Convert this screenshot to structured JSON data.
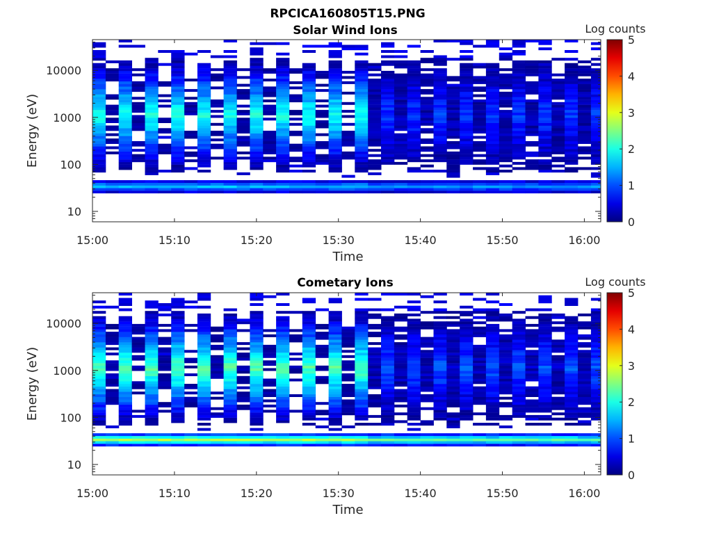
{
  "figure": {
    "title": "RPCICA160805T15.PNG"
  },
  "colorbar": {
    "label": "Log counts",
    "ticks": [
      "0",
      "1",
      "2",
      "3",
      "4",
      "5"
    ],
    "range": [
      0,
      5
    ],
    "colormap": "jet"
  },
  "chart_data": [
    {
      "type": "heatmap",
      "title": "Solar Wind Ions",
      "xlabel": "Time",
      "ylabel": "Energy (eV)",
      "x_ticks": [
        "15:00",
        "15:10",
        "15:20",
        "15:30",
        "15:40",
        "15:50",
        "16:00"
      ],
      "y_ticks": [
        "10",
        "100",
        "1000",
        "10000"
      ],
      "y_scale": "log",
      "x_range": [
        "15:00",
        "16:02"
      ],
      "y_range": [
        6,
        45000
      ],
      "band_peak_log_counts": {
        "high_energy_~1000eV": 2.0,
        "low_energy_~35eV": 1.6
      },
      "approx_sweep_period_min": 3.2
    },
    {
      "type": "heatmap",
      "title": "Cometary Ions",
      "xlabel": "Time",
      "ylabel": "Energy (eV)",
      "x_ticks": [
        "15:00",
        "15:10",
        "15:20",
        "15:30",
        "15:40",
        "15:50",
        "16:00"
      ],
      "y_ticks": [
        "10",
        "100",
        "1000",
        "10000"
      ],
      "y_scale": "log",
      "x_range": [
        "15:00",
        "16:02"
      ],
      "y_range": [
        6,
        45000
      ],
      "band_peak_log_counts": {
        "high_energy_~1000eV": 2.3,
        "low_energy_~35eV": 2.8
      },
      "approx_sweep_period_min": 3.2
    }
  ]
}
